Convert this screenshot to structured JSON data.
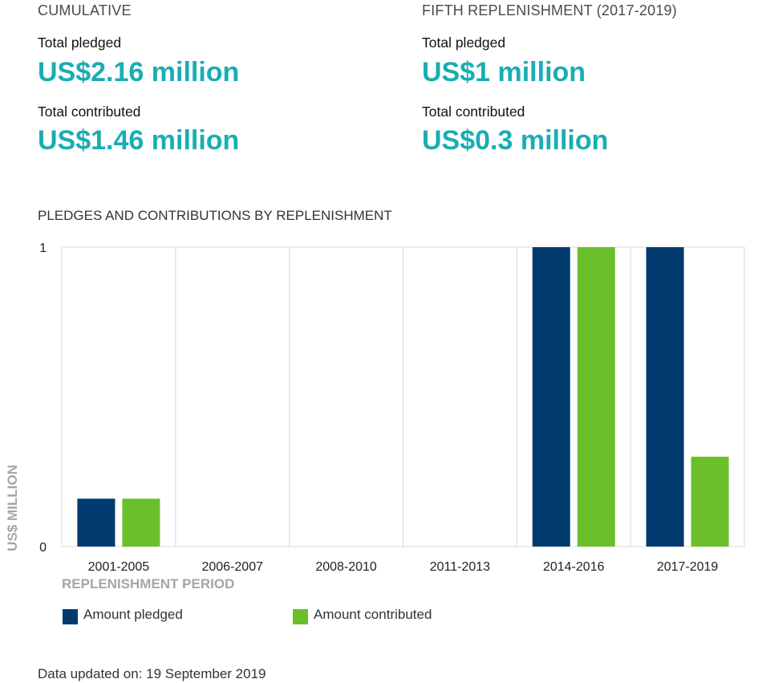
{
  "cumulative": {
    "heading": "CUMULATIVE",
    "pledged_label": "Total pledged",
    "pledged_value": "US$2.16 million",
    "contributed_label": "Total contributed",
    "contributed_value": "US$1.46 million"
  },
  "fifth": {
    "heading": "FIFTH REPLENISHMENT (2017-2019)",
    "pledged_label": "Total pledged",
    "pledged_value": "US$1 million",
    "contributed_label": "Total contributed",
    "contributed_value": "US$0.3 million"
  },
  "chart_data": {
    "type": "bar",
    "title": "PLEDGES AND CONTRIBUTIONS BY REPLENISHMENT",
    "xlabel": "REPLENISHMENT PERIOD",
    "ylabel": "US$ MILLION",
    "categories": [
      "2001-2005",
      "2006-2007",
      "2008-2010",
      "2011-2013",
      "2014-2016",
      "2017-2019"
    ],
    "series": [
      {
        "name": "Amount pledged",
        "color": "#003a6e",
        "values": [
          0.16,
          0,
          0,
          0,
          1,
          1
        ]
      },
      {
        "name": "Amount contributed",
        "color": "#6abf2a",
        "values": [
          0.16,
          0,
          0,
          0,
          1,
          0.3
        ]
      }
    ],
    "ylim": [
      0,
      1
    ],
    "yticks": [
      "0",
      "1"
    ],
    "grid": "vertical",
    "legend_position": "bottom-left"
  },
  "footer": {
    "updated": "Data updated on: 19 September 2019"
  }
}
